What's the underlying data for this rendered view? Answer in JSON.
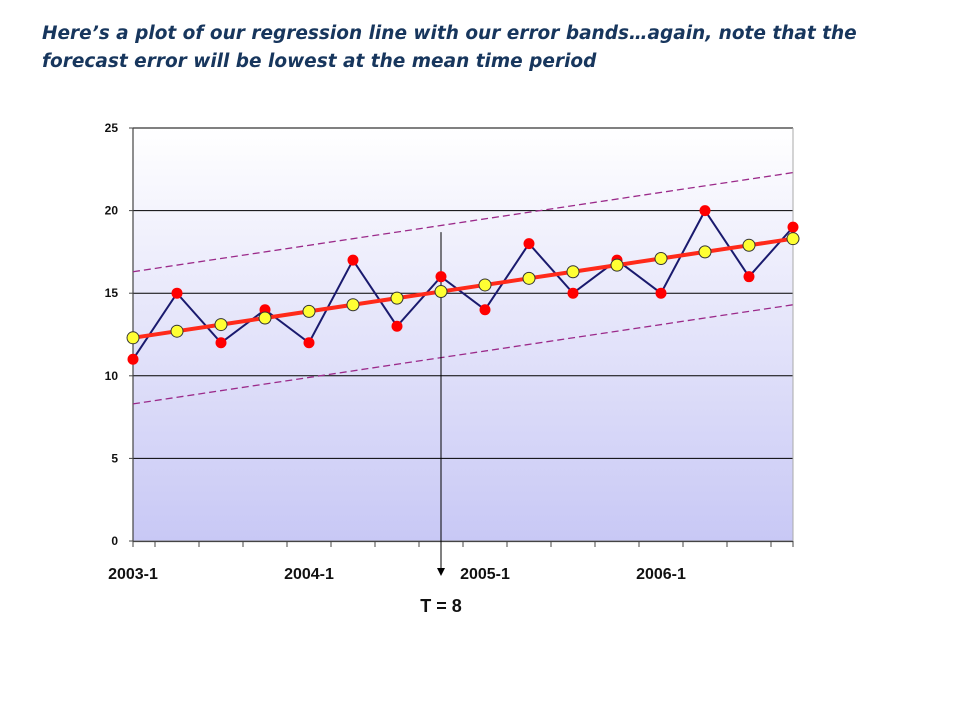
{
  "caption": {
    "line1": "Here’s a plot of our regression line with our error bands…again, note that the",
    "line2": "forecast error will be lowest at the mean time period"
  },
  "colors": {
    "caption": "#17365d",
    "actual_line": "#1a1a6e",
    "actual_marker": "#ff0000",
    "fitted_line": "#ff2a1a",
    "fitted_marker": "#ffff33",
    "error_band": "#9b2a8a",
    "plot_bg_top": "#ffffff",
    "plot_bg_bottom": "#c8c8f5"
  },
  "chart_data": {
    "type": "line",
    "title": "",
    "xlabel": "",
    "ylabel": "",
    "ylim": [
      0,
      25
    ],
    "yticks": [
      0,
      5,
      10,
      15,
      20,
      25
    ],
    "grid": "horizontal",
    "n_periods": 16,
    "category_labels": [
      {
        "index": 0,
        "text": "2003-1"
      },
      {
        "index": 4,
        "text": "2004-1"
      },
      {
        "index": 8,
        "text": "2005-1"
      },
      {
        "index": 12,
        "text": "2006-1"
      }
    ],
    "series": [
      {
        "role": "actual",
        "values": [
          11,
          15,
          12,
          14,
          12,
          17,
          13,
          16,
          14,
          18,
          15,
          17,
          15,
          20,
          16,
          19
        ]
      },
      {
        "role": "fitted",
        "values": [
          12.3,
          12.7,
          13.1,
          13.5,
          13.9,
          14.3,
          14.7,
          15.1,
          15.5,
          15.9,
          16.3,
          16.7,
          17.1,
          17.5,
          17.9,
          18.3
        ]
      },
      {
        "role": "upper_band",
        "values": [
          16.3,
          22.3
        ]
      },
      {
        "role": "lower_band",
        "values": [
          8.3,
          14.3
        ]
      }
    ],
    "annotation": {
      "text": "T = 8",
      "period_index": 7
    }
  }
}
